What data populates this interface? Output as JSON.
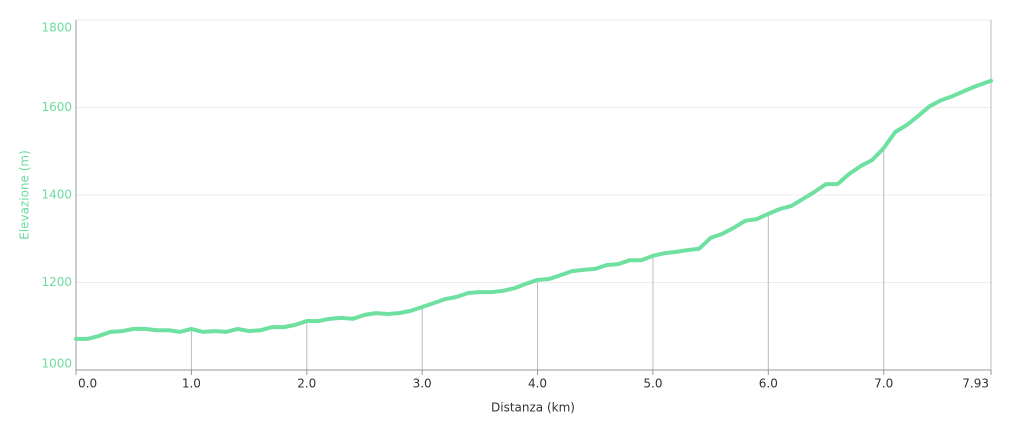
{
  "chart_data": {
    "type": "line",
    "x_label": "Distanza (km)",
    "y_label": "Elevazione (m)",
    "color": "#6ee0a0",
    "grid": true,
    "xlim": [
      0,
      7.93
    ],
    "xticks": [
      {
        "value": 0,
        "label": "0.0"
      },
      {
        "value": 1,
        "label": "1.0"
      },
      {
        "value": 2,
        "label": "2.0"
      },
      {
        "value": 3,
        "label": "3.0"
      },
      {
        "value": 4,
        "label": "4.0"
      },
      {
        "value": 5,
        "label": "5.0"
      },
      {
        "value": 6,
        "label": "6.0"
      },
      {
        "value": 7,
        "label": "7.0"
      },
      7.93
    ],
    "ylim": [
      1000,
      1800
    ],
    "yticks": [
      1000,
      1200,
      1400,
      1600,
      1800
    ],
    "x": [
      0,
      0.1,
      0.2,
      0.3,
      0.4,
      0.5,
      0.6,
      0.7,
      0.8,
      0.9,
      1.0,
      1.1,
      1.2,
      1.3,
      1.4,
      1.5,
      1.6,
      1.7,
      1.8,
      1.9,
      2.0,
      2.1,
      2.2,
      2.3,
      2.4,
      2.5,
      2.6,
      2.7,
      2.8,
      2.9,
      3.0,
      3.1,
      3.2,
      3.3,
      3.4,
      3.5,
      3.6,
      3.7,
      3.8,
      3.9,
      4.0,
      4.1,
      4.2,
      4.3,
      4.4,
      4.5,
      4.6,
      4.7,
      4.8,
      4.9,
      5.0,
      5.1,
      5.2,
      5.3,
      5.4,
      5.5,
      5.6,
      5.7,
      5.8,
      5.9,
      6.0,
      6.1,
      6.2,
      6.3,
      6.4,
      6.5,
      6.6,
      6.7,
      6.8,
      6.9,
      7.0,
      7.1,
      7.2,
      7.3,
      7.4,
      7.5,
      7.6,
      7.7,
      7.8,
      7.93
    ],
    "values": [
      1071,
      1071,
      1078,
      1087,
      1089,
      1094,
      1094,
      1091,
      1091,
      1087,
      1094,
      1087,
      1089,
      1087,
      1094,
      1089,
      1091,
      1098,
      1098,
      1103,
      1112,
      1112,
      1117,
      1119,
      1117,
      1126,
      1130,
      1128,
      1130,
      1135,
      1144,
      1153,
      1162,
      1167,
      1176,
      1178,
      1178,
      1181,
      1187,
      1197,
      1206,
      1208,
      1217,
      1226,
      1229,
      1231,
      1240,
      1242,
      1251,
      1251,
      1261,
      1267,
      1270,
      1274,
      1277,
      1302,
      1311,
      1325,
      1341,
      1345,
      1357,
      1368,
      1375,
      1391,
      1407,
      1425,
      1425,
      1448,
      1466,
      1480,
      1507,
      1544,
      1560,
      1581,
      1603,
      1617,
      1626,
      1638,
      1649,
      1661
    ]
  }
}
